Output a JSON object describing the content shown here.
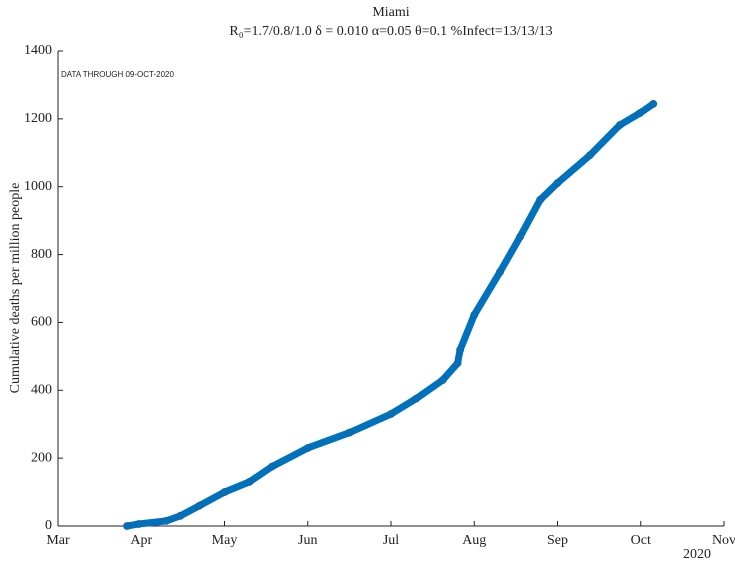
{
  "chart_data": {
    "type": "line",
    "title": "Miami",
    "subtitle": "R₀=1.7/0.8/1.0  δ = 0.010  α=0.05  θ=0.1  %Infect=13/13/13",
    "annotation": "DATA THROUGH 09-OCT-2020",
    "y_label": "Cumulative deaths per million people",
    "x_year_label": "2020",
    "color": "#0072bd",
    "x": [
      0.83,
      0.97,
      1.3,
      1.47,
      1.7,
      2.0,
      2.3,
      2.57,
      3.0,
      3.5,
      4.0,
      4.3,
      4.62,
      4.8,
      4.83,
      5.0,
      5.31,
      5.55,
      5.79,
      6.0,
      6.39,
      6.75,
      6.99,
      7.15
    ],
    "values": [
      0,
      6,
      15,
      30,
      60,
      100,
      130,
      175,
      230,
      275,
      330,
      375,
      430,
      480,
      519,
      622,
      749,
      852,
      961,
      1011,
      1093,
      1182,
      1217,
      1244
    ],
    "xlim": [
      0,
      8
    ],
    "xticks": [
      {
        "value": 0,
        "label": "Mar"
      },
      {
        "value": 1,
        "label": "Apr"
      },
      {
        "value": 2,
        "label": "May"
      },
      {
        "value": 3,
        "label": "Jun"
      },
      {
        "value": 4,
        "label": "Jul"
      },
      {
        "value": 5,
        "label": "Aug"
      },
      {
        "value": 6,
        "label": "Sep"
      },
      {
        "value": 7,
        "label": "Oct"
      },
      {
        "value": 8,
        "label": "Nov"
      }
    ],
    "ylim": [
      0,
      1400
    ],
    "yticks": [
      0,
      200,
      400,
      600,
      800,
      1000,
      1200,
      1400
    ]
  }
}
